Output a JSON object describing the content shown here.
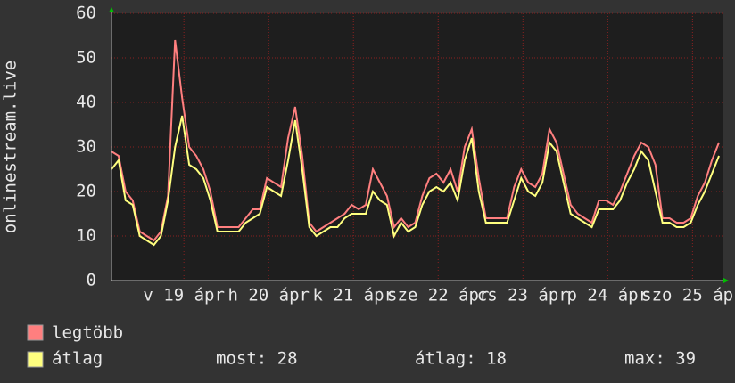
{
  "chart_data": {
    "type": "line",
    "y_label": "onlinestream.live",
    "x": [
      0,
      2,
      4,
      6,
      8,
      10,
      12,
      14,
      16,
      18,
      20,
      22,
      24,
      26,
      28,
      30,
      32,
      34,
      36,
      38,
      40,
      42,
      44,
      46,
      48,
      50,
      52,
      54,
      56,
      58,
      60,
      62,
      64,
      66,
      68,
      70,
      72,
      74,
      76,
      78,
      80,
      82,
      84,
      86,
      88,
      90,
      92,
      94,
      96,
      98,
      100,
      102,
      104,
      106,
      108,
      110,
      112,
      114,
      116,
      118,
      120,
      122,
      124,
      126,
      128,
      130,
      132,
      134,
      136,
      138,
      140,
      142,
      144,
      146,
      148,
      150,
      152,
      154,
      156,
      158,
      160,
      162,
      164,
      166,
      168,
      170,
      172
    ],
    "xlim": [
      0,
      173
    ],
    "xticks": [
      {
        "value": 20.5,
        "label": "v 19 ápr"
      },
      {
        "value": 44.5,
        "label": "h 20 ápr"
      },
      {
        "value": 68.5,
        "label": "k 21 ápr"
      },
      {
        "value": 92.5,
        "label": "sze 22 ápr"
      },
      {
        "value": 116.5,
        "label": "cs 23 ápr"
      },
      {
        "value": 140.5,
        "label": "p 24 ápr"
      },
      {
        "value": 164.5,
        "label": "szo 25 ápr"
      }
    ],
    "ylim": [
      0,
      60
    ],
    "yticks": [
      0,
      10,
      20,
      30,
      40,
      50,
      60
    ],
    "grid": true,
    "series": [
      {
        "name": "legtöbb",
        "color": "#ff7f7f",
        "values": [
          29,
          28,
          20,
          18,
          11,
          10,
          9,
          11,
          19,
          54,
          41,
          30,
          28,
          25,
          20,
          12,
          12,
          12,
          12,
          14,
          16,
          16,
          23,
          22,
          21,
          32,
          39,
          28,
          13,
          11,
          12,
          13,
          14,
          15,
          17,
          16,
          17,
          25,
          22,
          19,
          12,
          14,
          12,
          13,
          19,
          23,
          24,
          22,
          25,
          20,
          30,
          34,
          23,
          14,
          14,
          14,
          14,
          21,
          25,
          22,
          21,
          24,
          34,
          31,
          24,
          17,
          15,
          14,
          13,
          18,
          18,
          17,
          20,
          24,
          28,
          31,
          30,
          26,
          14,
          14,
          13,
          13,
          14,
          19,
          22,
          27,
          31
        ]
      },
      {
        "name": "átlag",
        "color": "#ffff7f",
        "values": [
          25,
          27,
          18,
          17,
          10,
          9,
          8,
          10,
          18,
          30,
          37,
          26,
          25,
          23,
          18,
          11,
          11,
          11,
          11,
          13,
          14,
          15,
          21,
          20,
          19,
          27,
          36,
          25,
          12,
          10,
          11,
          12,
          12,
          14,
          15,
          15,
          15,
          20,
          18,
          17,
          10,
          13,
          11,
          12,
          17,
          20,
          21,
          20,
          22,
          18,
          27,
          32,
          20,
          13,
          13,
          13,
          13,
          18,
          23,
          20,
          19,
          22,
          31,
          29,
          22,
          15,
          14,
          13,
          12,
          16,
          16,
          16,
          18,
          22,
          25,
          29,
          27,
          20,
          13,
          13,
          12,
          12,
          13,
          17,
          20,
          24,
          28
        ]
      }
    ],
    "stats": [
      "most: 28",
      "átlag: 18",
      "max: 39"
    ]
  }
}
